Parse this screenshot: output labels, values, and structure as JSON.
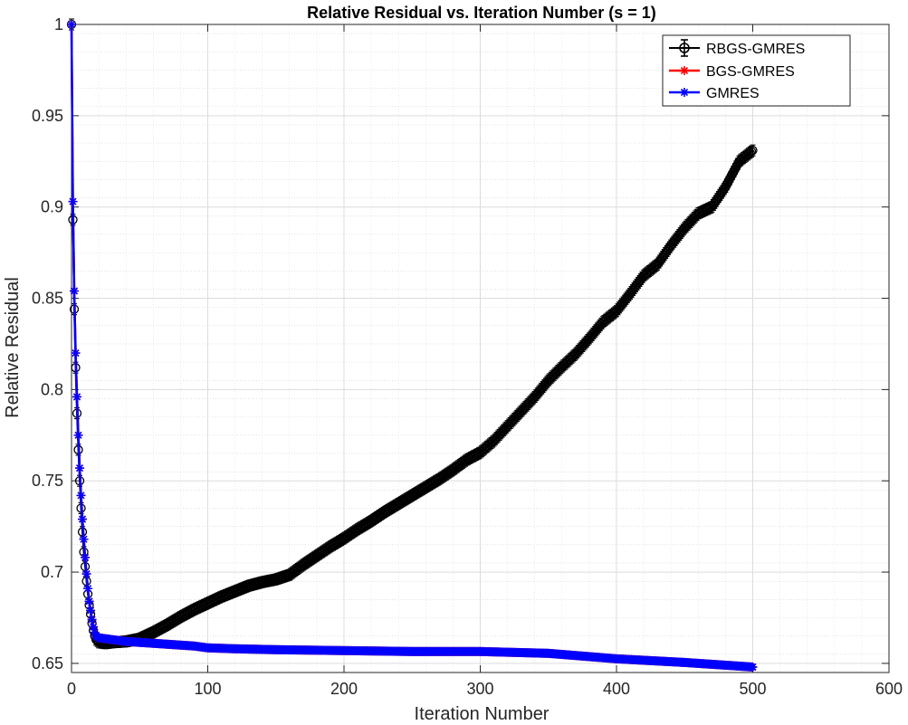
{
  "chart_data": {
    "type": "line",
    "title": "Relative Residual vs. Iteration Number (s = 1)",
    "xlabel": "Iteration Number",
    "ylabel": "Relative Residual",
    "xlim": [
      0,
      600
    ],
    "ylim": [
      0.645,
      1.0
    ],
    "xticks": [
      0,
      100,
      200,
      300,
      400,
      500,
      600
    ],
    "xtick_labels": [
      "0",
      "100",
      "200",
      "300",
      "400",
      "500",
      "600"
    ],
    "yticks": [
      0.65,
      0.7,
      0.75,
      0.8,
      0.85,
      0.9,
      0.95,
      1.0
    ],
    "ytick_labels": [
      "0.65",
      "0.7",
      "0.75",
      "0.8",
      "0.85",
      "0.9",
      "0.95",
      "1"
    ],
    "grid": true,
    "minor_grid": true,
    "legend_position": "top-right",
    "series": [
      {
        "name": "RBGS-GMRES",
        "color": "#000000",
        "marker": "circle-errorbar",
        "x": [
          0,
          1,
          2,
          3,
          4,
          5,
          6,
          7,
          8,
          9,
          10,
          11,
          12,
          13,
          14,
          15,
          16,
          17,
          18,
          20,
          25,
          30,
          40,
          50,
          60,
          70,
          80,
          90,
          100,
          110,
          120,
          130,
          140,
          150,
          160,
          170,
          180,
          190,
          200,
          210,
          220,
          230,
          240,
          250,
          260,
          270,
          280,
          290,
          300,
          310,
          320,
          330,
          340,
          350,
          360,
          370,
          380,
          390,
          400,
          410,
          420,
          430,
          440,
          450,
          460,
          470,
          480,
          490,
          500
        ],
        "y": [
          1.0,
          0.893,
          0.844,
          0.812,
          0.787,
          0.767,
          0.75,
          0.735,
          0.722,
          0.711,
          0.703,
          0.695,
          0.688,
          0.682,
          0.677,
          0.672,
          0.668,
          0.665,
          0.663,
          0.6615,
          0.661,
          0.6615,
          0.662,
          0.6635,
          0.667,
          0.671,
          0.6755,
          0.6795,
          0.683,
          0.6865,
          0.6895,
          0.6925,
          0.6945,
          0.696,
          0.6985,
          0.704,
          0.709,
          0.714,
          0.7185,
          0.7235,
          0.728,
          0.733,
          0.7375,
          0.742,
          0.7465,
          0.751,
          0.756,
          0.7615,
          0.7655,
          0.772,
          0.78,
          0.788,
          0.796,
          0.805,
          0.8125,
          0.8195,
          0.828,
          0.837,
          0.843,
          0.8525,
          0.8625,
          0.8685,
          0.879,
          0.8885,
          0.8965,
          0.9,
          0.911,
          0.925,
          0.931
        ]
      },
      {
        "name": "BGS-GMRES",
        "color": "#ff0000",
        "marker": "asterisk",
        "x": [
          0,
          1,
          2,
          3,
          4,
          5,
          6,
          7,
          8,
          9,
          10,
          11,
          12,
          13,
          14,
          15,
          16,
          17,
          18,
          20,
          25,
          30,
          40,
          50,
          60,
          70,
          80,
          90,
          100,
          120,
          150,
          200,
          250,
          300,
          350,
          400,
          450,
          500
        ],
        "y": [
          1.0,
          0.903,
          0.854,
          0.82,
          0.796,
          0.775,
          0.757,
          0.742,
          0.729,
          0.718,
          0.708,
          0.699,
          0.691,
          0.684,
          0.679,
          0.674,
          0.67,
          0.667,
          0.665,
          0.664,
          0.6635,
          0.663,
          0.662,
          0.6615,
          0.661,
          0.6605,
          0.66,
          0.6595,
          0.6585,
          0.658,
          0.6575,
          0.657,
          0.6565,
          0.6565,
          0.6555,
          0.6525,
          0.6505,
          0.648
        ]
      },
      {
        "name": "GMRES",
        "color": "#0000ff",
        "marker": "asterisk",
        "x": [
          0,
          1,
          2,
          3,
          4,
          5,
          6,
          7,
          8,
          9,
          10,
          11,
          12,
          13,
          14,
          15,
          16,
          17,
          18,
          20,
          25,
          30,
          40,
          50,
          60,
          70,
          80,
          90,
          100,
          120,
          150,
          200,
          250,
          300,
          350,
          400,
          450,
          500
        ],
        "y": [
          1.0,
          0.903,
          0.854,
          0.82,
          0.796,
          0.775,
          0.757,
          0.742,
          0.729,
          0.718,
          0.708,
          0.699,
          0.691,
          0.684,
          0.679,
          0.674,
          0.67,
          0.667,
          0.665,
          0.664,
          0.6635,
          0.663,
          0.662,
          0.6615,
          0.661,
          0.6605,
          0.66,
          0.6595,
          0.6585,
          0.658,
          0.6575,
          0.657,
          0.6565,
          0.6565,
          0.6555,
          0.6525,
          0.6505,
          0.648
        ]
      }
    ]
  }
}
